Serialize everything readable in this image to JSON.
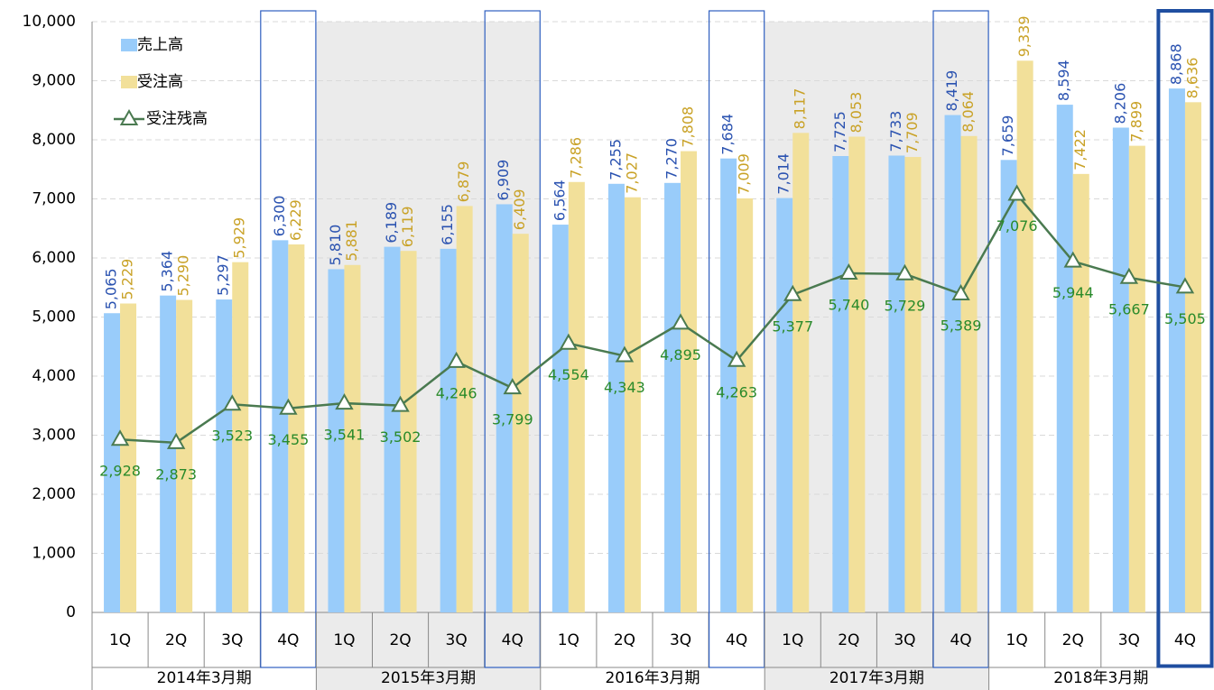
{
  "chart_data": {
    "type": "bar_line",
    "groups": [
      {
        "name": "2014年3月期",
        "categories": [
          "1Q",
          "2Q",
          "3Q",
          "4Q"
        ],
        "shaded": false
      },
      {
        "name": "2015年3月期",
        "categories": [
          "1Q",
          "2Q",
          "3Q",
          "4Q"
        ],
        "shaded": true
      },
      {
        "name": "2016年3月期",
        "categories": [
          "1Q",
          "2Q",
          "3Q",
          "4Q"
        ],
        "shaded": false
      },
      {
        "name": "2017年3月期",
        "categories": [
          "1Q",
          "2Q",
          "3Q",
          "4Q"
        ],
        "shaded": true
      },
      {
        "name": "2018年3月期",
        "categories": [
          "1Q",
          "2Q",
          "3Q",
          "4Q"
        ],
        "shaded": false
      }
    ],
    "series": [
      {
        "name": "売上高",
        "type": "bar",
        "color": "#99ccfa",
        "label_color": "#2a52b0",
        "values": [
          5065,
          5364,
          5297,
          6300,
          5810,
          6189,
          6155,
          6909,
          6564,
          7255,
          7270,
          7684,
          7014,
          7725,
          7733,
          8419,
          7659,
          8594,
          8206,
          8868
        ],
        "value_labels": [
          "5,065",
          "5,364",
          "5,297",
          "6,300",
          "5,810",
          "6,189",
          "6,155",
          "6,909",
          "6,564",
          "7,255",
          "7,270",
          "7,684",
          "7,014",
          "7,725",
          "7,733",
          "8,419",
          "7,659",
          "8,594",
          "8,206",
          "8,868"
        ]
      },
      {
        "name": "受注高",
        "type": "bar",
        "color": "#f2e09a",
        "label_color": "#c9a227",
        "values": [
          5229,
          5290,
          5929,
          6229,
          5881,
          6119,
          6879,
          6409,
          7286,
          7027,
          7808,
          7009,
          8117,
          8053,
          7709,
          8064,
          9339,
          7422,
          7899,
          8636
        ],
        "value_labels": [
          "5,229",
          "5,290",
          "5,929",
          "6,229",
          "5,881",
          "6,119",
          "6,879",
          "6,409",
          "7,286",
          "7,027",
          "7,808",
          "7,009",
          "8,117",
          "8,053",
          "7,709",
          "8,064",
          "9,339",
          "7,422",
          "7,899",
          "8,636"
        ]
      },
      {
        "name": "受注残高",
        "type": "line",
        "color": "#4a7a50",
        "label_color": "#2a8a2a",
        "values": [
          2928,
          2873,
          3523,
          3455,
          3541,
          3502,
          4246,
          3799,
          4554,
          4343,
          4895,
          4263,
          5377,
          5740,
          5729,
          5389,
          7076,
          5944,
          5667,
          5505
        ],
        "value_labels": [
          "2,928",
          "2,873",
          "3,523",
          "3,455",
          "3,541",
          "3,502",
          "4,246",
          "3,799",
          "4,554",
          "4,343",
          "4,895",
          "4,263",
          "5,377",
          "5,740",
          "5,729",
          "5,389",
          "7,076",
          "5,944",
          "5,667",
          "5,505"
        ]
      }
    ],
    "ylim": [
      0,
      10000
    ],
    "yticks": [
      0,
      {
        "value": 1000,
        "label": "1,000"
      },
      {
        "value": 2000,
        "label": "2,000"
      },
      {
        "value": 3000,
        "label": "3,000"
      },
      {
        "value": 4000,
        "label": "4,000"
      },
      {
        "value": 5000,
        "label": "5,000"
      },
      {
        "value": 6000,
        "label": "6,000"
      },
      {
        "value": 7000,
        "label": "7,000"
      },
      {
        "value": 8000,
        "label": "8,000"
      },
      {
        "value": 9000,
        "label": "9,000"
      },
      {
        "value": 10000,
        "label": "10,000"
      }
    ],
    "grid": true,
    "legend": "upper left"
  }
}
